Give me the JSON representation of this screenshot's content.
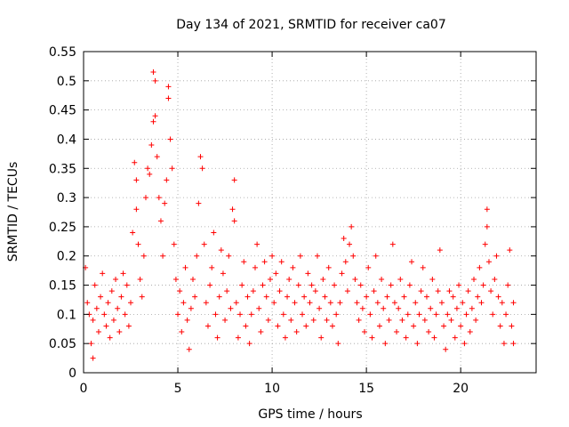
{
  "chart_data": {
    "type": "scatter",
    "title": "Day 134 of 2021, SRMTID for receiver ca07",
    "xlabel": "GPS time / hours",
    "ylabel": "SRMTID / TECUs",
    "xlim": [
      0,
      24
    ],
    "ylim": [
      0,
      0.55
    ],
    "xticks": [
      0,
      5,
      10,
      15,
      20
    ],
    "yticks": [
      0,
      0.05,
      0.1,
      0.15,
      0.2,
      0.25,
      0.3,
      0.35,
      0.4,
      0.45,
      0.5,
      0.55
    ],
    "grid": true,
    "marker": "+",
    "color": "#ff0000",
    "series": [
      {
        "name": "SRMTID",
        "points": [
          [
            0.1,
            0.18
          ],
          [
            0.2,
            0.12
          ],
          [
            0.3,
            0.1
          ],
          [
            0.4,
            0.05
          ],
          [
            0.5,
            0.025
          ],
          [
            0.5,
            0.09
          ],
          [
            0.6,
            0.15
          ],
          [
            0.7,
            0.11
          ],
          [
            0.8,
            0.07
          ],
          [
            0.9,
            0.13
          ],
          [
            1.0,
            0.17
          ],
          [
            1.1,
            0.1
          ],
          [
            1.2,
            0.08
          ],
          [
            1.3,
            0.12
          ],
          [
            1.4,
            0.06
          ],
          [
            1.5,
            0.14
          ],
          [
            1.6,
            0.09
          ],
          [
            1.7,
            0.16
          ],
          [
            1.8,
            0.11
          ],
          [
            1.9,
            0.07
          ],
          [
            2.0,
            0.13
          ],
          [
            2.1,
            0.17
          ],
          [
            2.2,
            0.1
          ],
          [
            2.3,
            0.15
          ],
          [
            2.4,
            0.08
          ],
          [
            2.5,
            0.12
          ],
          [
            2.6,
            0.24
          ],
          [
            2.7,
            0.36
          ],
          [
            2.8,
            0.33
          ],
          [
            2.8,
            0.28
          ],
          [
            2.9,
            0.22
          ],
          [
            3.0,
            0.16
          ],
          [
            3.1,
            0.13
          ],
          [
            3.2,
            0.2
          ],
          [
            3.3,
            0.3
          ],
          [
            3.4,
            0.35
          ],
          [
            3.5,
            0.34
          ],
          [
            3.6,
            0.39
          ],
          [
            3.7,
            0.43
          ],
          [
            3.7,
            0.515
          ],
          [
            3.8,
            0.5
          ],
          [
            3.8,
            0.44
          ],
          [
            3.9,
            0.37
          ],
          [
            4.0,
            0.3
          ],
          [
            4.1,
            0.26
          ],
          [
            4.2,
            0.2
          ],
          [
            4.3,
            0.29
          ],
          [
            4.4,
            0.33
          ],
          [
            4.5,
            0.49
          ],
          [
            4.5,
            0.47
          ],
          [
            4.6,
            0.4
          ],
          [
            4.7,
            0.35
          ],
          [
            4.8,
            0.22
          ],
          [
            4.9,
            0.16
          ],
          [
            5.0,
            0.1
          ],
          [
            5.1,
            0.14
          ],
          [
            5.2,
            0.07
          ],
          [
            5.3,
            0.12
          ],
          [
            5.4,
            0.18
          ],
          [
            5.5,
            0.09
          ],
          [
            5.6,
            0.04
          ],
          [
            5.7,
            0.11
          ],
          [
            5.8,
            0.16
          ],
          [
            5.9,
            0.13
          ],
          [
            6.0,
            0.2
          ],
          [
            6.1,
            0.29
          ],
          [
            6.2,
            0.37
          ],
          [
            6.3,
            0.35
          ],
          [
            6.4,
            0.22
          ],
          [
            6.5,
            0.12
          ],
          [
            6.6,
            0.08
          ],
          [
            6.7,
            0.15
          ],
          [
            6.8,
            0.18
          ],
          [
            6.9,
            0.24
          ],
          [
            7.0,
            0.1
          ],
          [
            7.1,
            0.06
          ],
          [
            7.2,
            0.13
          ],
          [
            7.3,
            0.21
          ],
          [
            7.4,
            0.17
          ],
          [
            7.5,
            0.09
          ],
          [
            7.6,
            0.14
          ],
          [
            7.7,
            0.2
          ],
          [
            7.8,
            0.11
          ],
          [
            7.9,
            0.28
          ],
          [
            8.0,
            0.33
          ],
          [
            8.0,
            0.26
          ],
          [
            8.1,
            0.12
          ],
          [
            8.2,
            0.06
          ],
          [
            8.3,
            0.1
          ],
          [
            8.4,
            0.15
          ],
          [
            8.5,
            0.19
          ],
          [
            8.6,
            0.08
          ],
          [
            8.7,
            0.13
          ],
          [
            8.8,
            0.05
          ],
          [
            8.9,
            0.1
          ],
          [
            9.0,
            0.14
          ],
          [
            9.1,
            0.18
          ],
          [
            9.2,
            0.22
          ],
          [
            9.3,
            0.11
          ],
          [
            9.4,
            0.07
          ],
          [
            9.5,
            0.15
          ],
          [
            9.6,
            0.19
          ],
          [
            9.7,
            0.13
          ],
          [
            9.8,
            0.09
          ],
          [
            9.9,
            0.16
          ],
          [
            10.0,
            0.2
          ],
          [
            10.1,
            0.12
          ],
          [
            10.2,
            0.17
          ],
          [
            10.3,
            0.08
          ],
          [
            10.4,
            0.14
          ],
          [
            10.5,
            0.19
          ],
          [
            10.6,
            0.1
          ],
          [
            10.7,
            0.06
          ],
          [
            10.8,
            0.13
          ],
          [
            10.9,
            0.16
          ],
          [
            11.0,
            0.09
          ],
          [
            11.1,
            0.18
          ],
          [
            11.2,
            0.12
          ],
          [
            11.3,
            0.07
          ],
          [
            11.4,
            0.15
          ],
          [
            11.5,
            0.2
          ],
          [
            11.6,
            0.1
          ],
          [
            11.7,
            0.13
          ],
          [
            11.8,
            0.08
          ],
          [
            11.9,
            0.17
          ],
          [
            12.0,
            0.12
          ],
          [
            12.1,
            0.15
          ],
          [
            12.2,
            0.09
          ],
          [
            12.3,
            0.14
          ],
          [
            12.4,
            0.2
          ],
          [
            12.5,
            0.11
          ],
          [
            12.6,
            0.06
          ],
          [
            12.7,
            0.16
          ],
          [
            12.8,
            0.13
          ],
          [
            12.9,
            0.09
          ],
          [
            13.0,
            0.18
          ],
          [
            13.1,
            0.12
          ],
          [
            13.2,
            0.08
          ],
          [
            13.3,
            0.15
          ],
          [
            13.4,
            0.1
          ],
          [
            13.5,
            0.05
          ],
          [
            13.6,
            0.12
          ],
          [
            13.7,
            0.17
          ],
          [
            13.8,
            0.23
          ],
          [
            13.9,
            0.19
          ],
          [
            14.0,
            0.14
          ],
          [
            14.1,
            0.22
          ],
          [
            14.2,
            0.25
          ],
          [
            14.3,
            0.2
          ],
          [
            14.4,
            0.16
          ],
          [
            14.5,
            0.12
          ],
          [
            14.6,
            0.09
          ],
          [
            14.7,
            0.15
          ],
          [
            14.8,
            0.11
          ],
          [
            14.9,
            0.07
          ],
          [
            15.0,
            0.13
          ],
          [
            15.1,
            0.18
          ],
          [
            15.2,
            0.1
          ],
          [
            15.3,
            0.06
          ],
          [
            15.4,
            0.14
          ],
          [
            15.5,
            0.2
          ],
          [
            15.6,
            0.12
          ],
          [
            15.7,
            0.08
          ],
          [
            15.8,
            0.16
          ],
          [
            15.9,
            0.11
          ],
          [
            16.0,
            0.05
          ],
          [
            16.1,
            0.13
          ],
          [
            16.2,
            0.09
          ],
          [
            16.3,
            0.15
          ],
          [
            16.4,
            0.22
          ],
          [
            16.5,
            0.12
          ],
          [
            16.6,
            0.07
          ],
          [
            16.7,
            0.11
          ],
          [
            16.8,
            0.16
          ],
          [
            16.9,
            0.09
          ],
          [
            17.0,
            0.13
          ],
          [
            17.1,
            0.06
          ],
          [
            17.2,
            0.1
          ],
          [
            17.3,
            0.15
          ],
          [
            17.4,
            0.19
          ],
          [
            17.5,
            0.08
          ],
          [
            17.6,
            0.12
          ],
          [
            17.7,
            0.05
          ],
          [
            17.8,
            0.1
          ],
          [
            17.9,
            0.14
          ],
          [
            18.0,
            0.18
          ],
          [
            18.1,
            0.09
          ],
          [
            18.2,
            0.13
          ],
          [
            18.3,
            0.07
          ],
          [
            18.4,
            0.11
          ],
          [
            18.5,
            0.16
          ],
          [
            18.6,
            0.06
          ],
          [
            18.7,
            0.1
          ],
          [
            18.8,
            0.14
          ],
          [
            18.9,
            0.21
          ],
          [
            19.0,
            0.12
          ],
          [
            19.1,
            0.08
          ],
          [
            19.2,
            0.04
          ],
          [
            19.3,
            0.1
          ],
          [
            19.4,
            0.14
          ],
          [
            19.5,
            0.09
          ],
          [
            19.6,
            0.13
          ],
          [
            19.7,
            0.06
          ],
          [
            19.8,
            0.11
          ],
          [
            19.9,
            0.15
          ],
          [
            20.0,
            0.08
          ],
          [
            20.1,
            0.12
          ],
          [
            20.2,
            0.05
          ],
          [
            20.3,
            0.1
          ],
          [
            20.4,
            0.14
          ],
          [
            20.5,
            0.07
          ],
          [
            20.6,
            0.11
          ],
          [
            20.7,
            0.16
          ],
          [
            20.8,
            0.09
          ],
          [
            20.9,
            0.13
          ],
          [
            21.0,
            0.18
          ],
          [
            21.1,
            0.12
          ],
          [
            21.2,
            0.15
          ],
          [
            21.3,
            0.22
          ],
          [
            21.4,
            0.28
          ],
          [
            21.4,
            0.25
          ],
          [
            21.5,
            0.19
          ],
          [
            21.6,
            0.14
          ],
          [
            21.7,
            0.1
          ],
          [
            21.8,
            0.16
          ],
          [
            21.9,
            0.2
          ],
          [
            22.0,
            0.13
          ],
          [
            22.1,
            0.08
          ],
          [
            22.2,
            0.12
          ],
          [
            22.3,
            0.05
          ],
          [
            22.4,
            0.1
          ],
          [
            22.5,
            0.15
          ],
          [
            22.6,
            0.21
          ],
          [
            22.7,
            0.08
          ],
          [
            22.8,
            0.12
          ],
          [
            22.8,
            0.05
          ]
        ]
      }
    ]
  }
}
